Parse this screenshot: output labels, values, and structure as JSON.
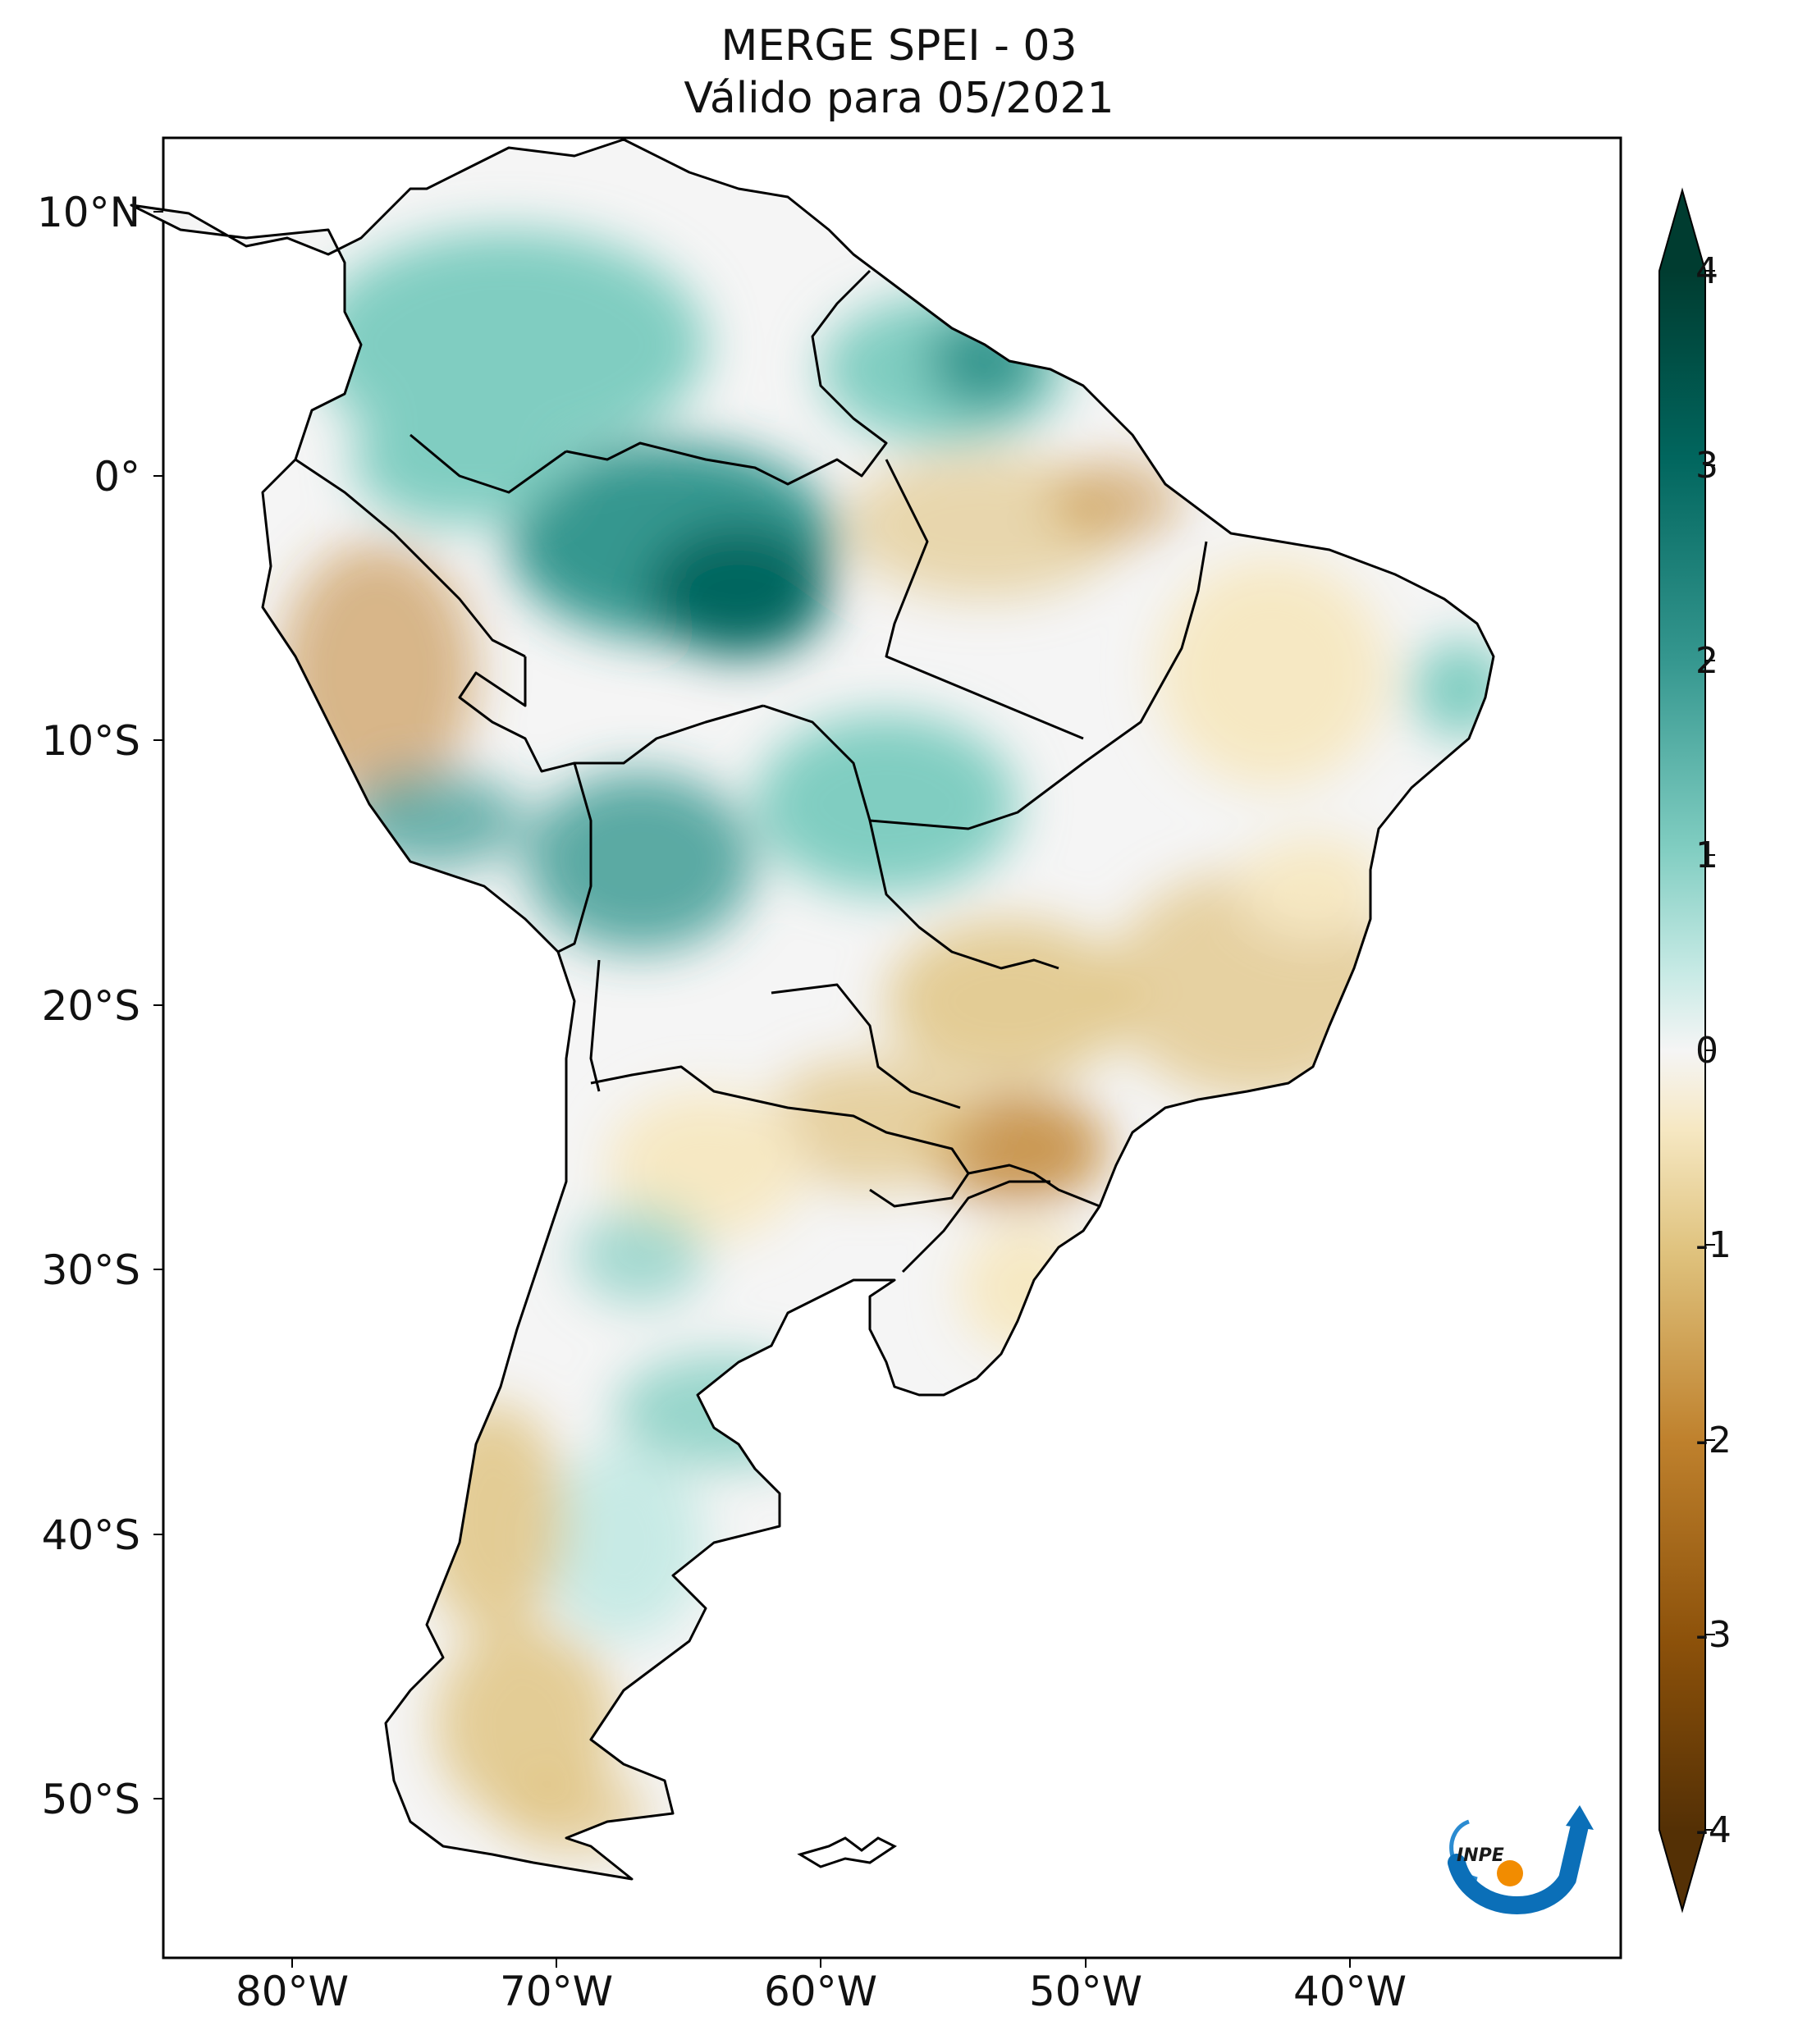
{
  "title": {
    "line1": "MERGE   SPEI - 03",
    "line2": "Válido para 05/2021"
  },
  "axes": {
    "lat_ticks": [
      "10°N",
      "0°",
      "10°S",
      "20°S",
      "30°S",
      "40°S",
      "50°S"
    ],
    "lon_ticks": [
      "80°W",
      "70°W",
      "60°W",
      "50°W",
      "40°W"
    ]
  },
  "colorbar": {
    "ticks": [
      "4",
      "3",
      "2",
      "1",
      "0",
      "-1",
      "-2",
      "-3",
      "-4"
    ],
    "palette": {
      "wet_extreme": "#003c30",
      "wet_strong": "#01665e",
      "wet_moderate": "#35978f",
      "wet_mild": "#80cdc1",
      "wet_light": "#c7eae5",
      "neutral": "#f5f5f5",
      "dry_light": "#f6e8c3",
      "dry_mild": "#dfc27d",
      "dry_moderate": "#bf812d",
      "dry_strong": "#8c510a",
      "dry_extreme": "#543005"
    },
    "extend": "both"
  },
  "logo": {
    "text": "INPE"
  },
  "colors": {
    "border": "#000000",
    "ocean": "#ffffff"
  }
}
